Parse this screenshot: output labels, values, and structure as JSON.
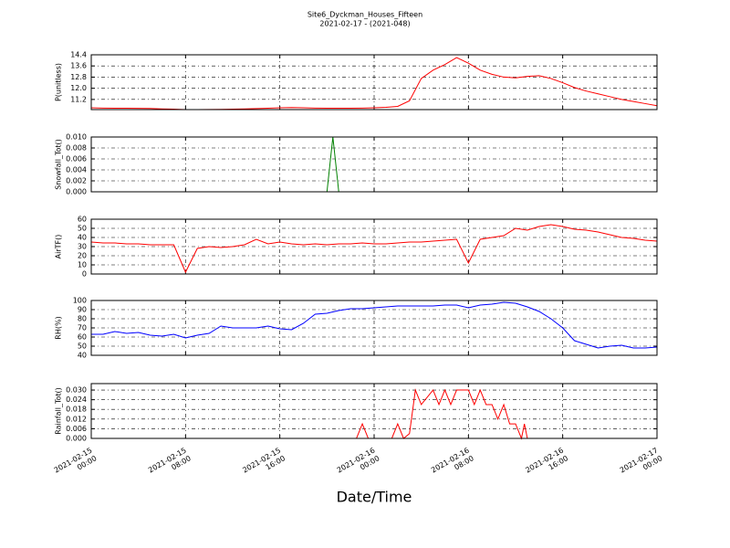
{
  "chart_data": [
    {
      "type": "line",
      "title": "Site6_Dyckman_Houses_Fifteen",
      "subtitle": "2021-02-17 - (2021-048)",
      "ylabel": "P(unitless)",
      "color": "#ff0000",
      "x": [
        "2021-02-15T00:00",
        "2021-02-15T01:00",
        "2021-02-15T02:00",
        "2021-02-15T03:00",
        "2021-02-15T04:00",
        "2021-02-15T05:00",
        "2021-02-15T06:00",
        "2021-02-15T07:00",
        "2021-02-15T08:00",
        "2021-02-15T09:00",
        "2021-02-15T10:00",
        "2021-02-15T11:00",
        "2021-02-15T12:00",
        "2021-02-15T13:00",
        "2021-02-15T14:00",
        "2021-02-15T15:00",
        "2021-02-15T16:00",
        "2021-02-15T17:00",
        "2021-02-15T18:00",
        "2021-02-15T19:00",
        "2021-02-15T20:00",
        "2021-02-15T21:00",
        "2021-02-15T22:00",
        "2021-02-15T23:00",
        "2021-02-16T00:00",
        "2021-02-16T01:00",
        "2021-02-16T02:00",
        "2021-02-16T03:00",
        "2021-02-16T04:00",
        "2021-02-16T05:00",
        "2021-02-16T06:00",
        "2021-02-16T07:00",
        "2021-02-16T08:00",
        "2021-02-16T09:00",
        "2021-02-16T10:00",
        "2021-02-16T11:00",
        "2021-02-16T12:00",
        "2021-02-16T13:00",
        "2021-02-16T14:00",
        "2021-02-16T15:00",
        "2021-02-16T16:00",
        "2021-02-16T17:00",
        "2021-02-16T18:00",
        "2021-02-16T19:00",
        "2021-02-16T20:00",
        "2021-02-16T21:00",
        "2021-02-16T22:00",
        "2021-02-16T23:00",
        "2021-02-17T00:00"
      ],
      "values": [
        10.6,
        10.58,
        10.57,
        10.57,
        10.56,
        10.55,
        10.52,
        10.5,
        10.47,
        10.47,
        10.48,
        10.49,
        10.5,
        10.52,
        10.54,
        10.57,
        10.6,
        10.62,
        10.6,
        10.58,
        10.57,
        10.57,
        10.57,
        10.58,
        10.6,
        10.63,
        10.7,
        11.1,
        12.7,
        13.3,
        13.7,
        14.2,
        13.8,
        13.3,
        13.0,
        12.8,
        12.75,
        12.85,
        12.9,
        12.7,
        12.4,
        12.05,
        11.8,
        11.6,
        11.4,
        11.2,
        11.05,
        10.9,
        10.75
      ],
      "xlim": [
        "2021-02-15T00:00",
        "2021-02-17T00:00"
      ],
      "xticks": [
        "2021-02-15T00:00",
        "2021-02-15T08:00",
        "2021-02-15T16:00",
        "2021-02-16T00:00",
        "2021-02-16T08:00",
        "2021-02-16T16:00",
        "2021-02-17T00:00"
      ],
      "ylim": [
        10.47,
        14.4
      ],
      "yticks": [
        11.2,
        {
          "value": 12,
          "label": "12.0"
        },
        12.8,
        13.6,
        14.4
      ],
      "grid": true
    },
    {
      "type": "line",
      "ylabel": "Snowfall_Tot()",
      "color": "#008000",
      "x": [
        "2021-02-15T00:00",
        "2021-02-15T20:00",
        "2021-02-15T20:30",
        "2021-02-15T21:00",
        "2021-02-17T00:00"
      ],
      "values": [
        0,
        0,
        0.01,
        0,
        0
      ],
      "xlim": [
        "2021-02-15T00:00",
        "2021-02-17T00:00"
      ],
      "xticks": [
        "2021-02-15T00:00",
        "2021-02-15T08:00",
        "2021-02-15T16:00",
        "2021-02-16T00:00",
        "2021-02-16T08:00",
        "2021-02-16T16:00",
        "2021-02-17T00:00"
      ],
      "ylim": [
        0,
        0.01
      ],
      "yticks": [
        {
          "value": 0,
          "label": "0.000"
        },
        {
          "value": 0.002,
          "label": "0.002"
        },
        {
          "value": 0.004,
          "label": "0.004"
        },
        {
          "value": 0.006,
          "label": "0.006"
        },
        {
          "value": 0.008,
          "label": "0.008"
        },
        {
          "value": 0.01,
          "label": "0.010"
        }
      ],
      "grid": true
    },
    {
      "type": "line",
      "ylabel": "AirTF()",
      "color": "#ff0000",
      "x": [
        "2021-02-15T00:00",
        "2021-02-15T01:00",
        "2021-02-15T02:00",
        "2021-02-15T03:00",
        "2021-02-15T04:00",
        "2021-02-15T05:00",
        "2021-02-15T06:00",
        "2021-02-15T07:00",
        "2021-02-15T08:00",
        "2021-02-15T09:00",
        "2021-02-15T10:00",
        "2021-02-15T11:00",
        "2021-02-15T12:00",
        "2021-02-15T13:00",
        "2021-02-15T14:00",
        "2021-02-15T15:00",
        "2021-02-15T16:00",
        "2021-02-15T17:00",
        "2021-02-15T18:00",
        "2021-02-15T19:00",
        "2021-02-15T20:00",
        "2021-02-15T21:00",
        "2021-02-15T22:00",
        "2021-02-15T23:00",
        "2021-02-16T00:00",
        "2021-02-16T01:00",
        "2021-02-16T02:00",
        "2021-02-16T03:00",
        "2021-02-16T04:00",
        "2021-02-16T05:00",
        "2021-02-16T06:00",
        "2021-02-16T07:00",
        "2021-02-16T08:00",
        "2021-02-16T09:00",
        "2021-02-16T10:00",
        "2021-02-16T11:00",
        "2021-02-16T12:00",
        "2021-02-16T13:00",
        "2021-02-16T14:00",
        "2021-02-16T15:00",
        "2021-02-16T16:00",
        "2021-02-16T17:00",
        "2021-02-16T18:00",
        "2021-02-16T19:00",
        "2021-02-16T20:00",
        "2021-02-16T21:00",
        "2021-02-16T22:00",
        "2021-02-16T23:00",
        "2021-02-17T00:00"
      ],
      "values": [
        35,
        34,
        34,
        33,
        33,
        32,
        32,
        32,
        2,
        28,
        30,
        29,
        30,
        32,
        38,
        33,
        35,
        33,
        32,
        33,
        32,
        33,
        33,
        34,
        33,
        33,
        34,
        35,
        35,
        36,
        37,
        38,
        12,
        38,
        40,
        42,
        50,
        48,
        52,
        54,
        52,
        49,
        48,
        46,
        43,
        40,
        39,
        37,
        36
      ],
      "xlim": [
        "2021-02-15T00:00",
        "2021-02-17T00:00"
      ],
      "xticks": [
        "2021-02-15T00:00",
        "2021-02-15T08:00",
        "2021-02-15T16:00",
        "2021-02-16T00:00",
        "2021-02-16T08:00",
        "2021-02-16T16:00",
        "2021-02-17T00:00"
      ],
      "ylim": [
        0,
        60
      ],
      "yticks": [
        0,
        10,
        20,
        30,
        40,
        50,
        60
      ],
      "grid": true
    },
    {
      "type": "line",
      "ylabel": "RH(%)",
      "color": "#0000ff",
      "x": [
        "2021-02-15T00:00",
        "2021-02-15T01:00",
        "2021-02-15T02:00",
        "2021-02-15T03:00",
        "2021-02-15T04:00",
        "2021-02-15T05:00",
        "2021-02-15T06:00",
        "2021-02-15T07:00",
        "2021-02-15T08:00",
        "2021-02-15T09:00",
        "2021-02-15T10:00",
        "2021-02-15T11:00",
        "2021-02-15T12:00",
        "2021-02-15T13:00",
        "2021-02-15T14:00",
        "2021-02-15T15:00",
        "2021-02-15T16:00",
        "2021-02-15T17:00",
        "2021-02-15T18:00",
        "2021-02-15T19:00",
        "2021-02-15T20:00",
        "2021-02-15T21:00",
        "2021-02-15T22:00",
        "2021-02-15T23:00",
        "2021-02-16T00:00",
        "2021-02-16T01:00",
        "2021-02-16T02:00",
        "2021-02-16T03:00",
        "2021-02-16T04:00",
        "2021-02-16T05:00",
        "2021-02-16T06:00",
        "2021-02-16T07:00",
        "2021-02-16T08:00",
        "2021-02-16T09:00",
        "2021-02-16T10:00",
        "2021-02-16T11:00",
        "2021-02-16T12:00",
        "2021-02-16T13:00",
        "2021-02-16T14:00",
        "2021-02-16T15:00",
        "2021-02-16T16:00",
        "2021-02-16T17:00",
        "2021-02-16T18:00",
        "2021-02-16T19:00",
        "2021-02-16T20:00",
        "2021-02-16T21:00",
        "2021-02-16T22:00",
        "2021-02-16T23:00",
        "2021-02-17T00:00"
      ],
      "values": [
        63,
        63,
        66,
        64,
        65,
        62,
        61,
        63,
        59,
        62,
        64,
        72,
        70,
        70,
        70,
        72,
        69,
        68,
        75,
        85,
        86,
        89,
        91,
        91,
        92,
        93,
        94,
        94,
        94,
        94,
        95,
        95,
        92,
        95,
        96,
        98,
        97,
        93,
        88,
        80,
        70,
        56,
        52,
        48,
        50,
        51,
        48,
        48,
        49
      ],
      "xlim": [
        "2021-02-15T00:00",
        "2021-02-17T00:00"
      ],
      "xticks": [
        "2021-02-15T00:00",
        "2021-02-15T08:00",
        "2021-02-15T16:00",
        "2021-02-16T00:00",
        "2021-02-16T08:00",
        "2021-02-16T16:00",
        "2021-02-17T00:00"
      ],
      "ylim": [
        40,
        100
      ],
      "yticks": [
        40,
        50,
        60,
        70,
        80,
        90,
        100
      ],
      "grid": true
    },
    {
      "type": "line",
      "ylabel": "Rainfall_Tot()",
      "xlabel": "Date/Time",
      "color": "#ff0000",
      "x": [
        "2021-02-15T00:00",
        "2021-02-15T22:30",
        "2021-02-15T23:00",
        "2021-02-15T23:30",
        "2021-02-16T01:30",
        "2021-02-16T02:00",
        "2021-02-16T02:30",
        "2021-02-16T03:00",
        "2021-02-16T03:30",
        "2021-02-16T04:00",
        "2021-02-16T05:00",
        "2021-02-16T05:30",
        "2021-02-16T06:00",
        "2021-02-16T06:30",
        "2021-02-16T07:00",
        "2021-02-16T08:00",
        "2021-02-16T08:30",
        "2021-02-16T09:00",
        "2021-02-16T09:30",
        "2021-02-16T10:00",
        "2021-02-16T10:30",
        "2021-02-16T11:00",
        "2021-02-16T11:30",
        "2021-02-16T12:00",
        "2021-02-16T12:30",
        "2021-02-16T12:45",
        "2021-02-16T13:00",
        "2021-02-17T00:00"
      ],
      "values": [
        0,
        0,
        0.009,
        0,
        0,
        0.009,
        0,
        0.003,
        0.03,
        0.021,
        0.03,
        0.021,
        0.03,
        0.021,
        0.03,
        0.03,
        0.021,
        0.03,
        0.021,
        0.021,
        0.012,
        0.021,
        0.009,
        0.009,
        0,
        0.009,
        0,
        0
      ],
      "xlim": [
        "2021-02-15T00:00",
        "2021-02-17T00:00"
      ],
      "xticks": [
        {
          "value": "2021-02-15T00:00",
          "label": "2021-02-15 00:00"
        },
        {
          "value": "2021-02-15T08:00",
          "label": "2021-02-15 08:00"
        },
        {
          "value": "2021-02-15T16:00",
          "label": "2021-02-15 16:00"
        },
        {
          "value": "2021-02-16T00:00",
          "label": "2021-02-16 00:00"
        },
        {
          "value": "2021-02-16T08:00",
          "label": "2021-02-16 08:00"
        },
        {
          "value": "2021-02-16T16:00",
          "label": "2021-02-16 16:00"
        },
        {
          "value": "2021-02-17T00:00",
          "label": "2021-02-17 00:00"
        }
      ],
      "ylim": [
        0,
        0.034
      ],
      "yticks": [
        {
          "value": 0,
          "label": "0.000"
        },
        {
          "value": 0.006,
          "label": "0.006"
        },
        {
          "value": 0.012,
          "label": "0.012"
        },
        {
          "value": 0.018,
          "label": "0.018"
        },
        {
          "value": 0.024,
          "label": "0.024"
        },
        {
          "value": 0.03,
          "label": "0.030"
        }
      ],
      "grid": true
    }
  ]
}
